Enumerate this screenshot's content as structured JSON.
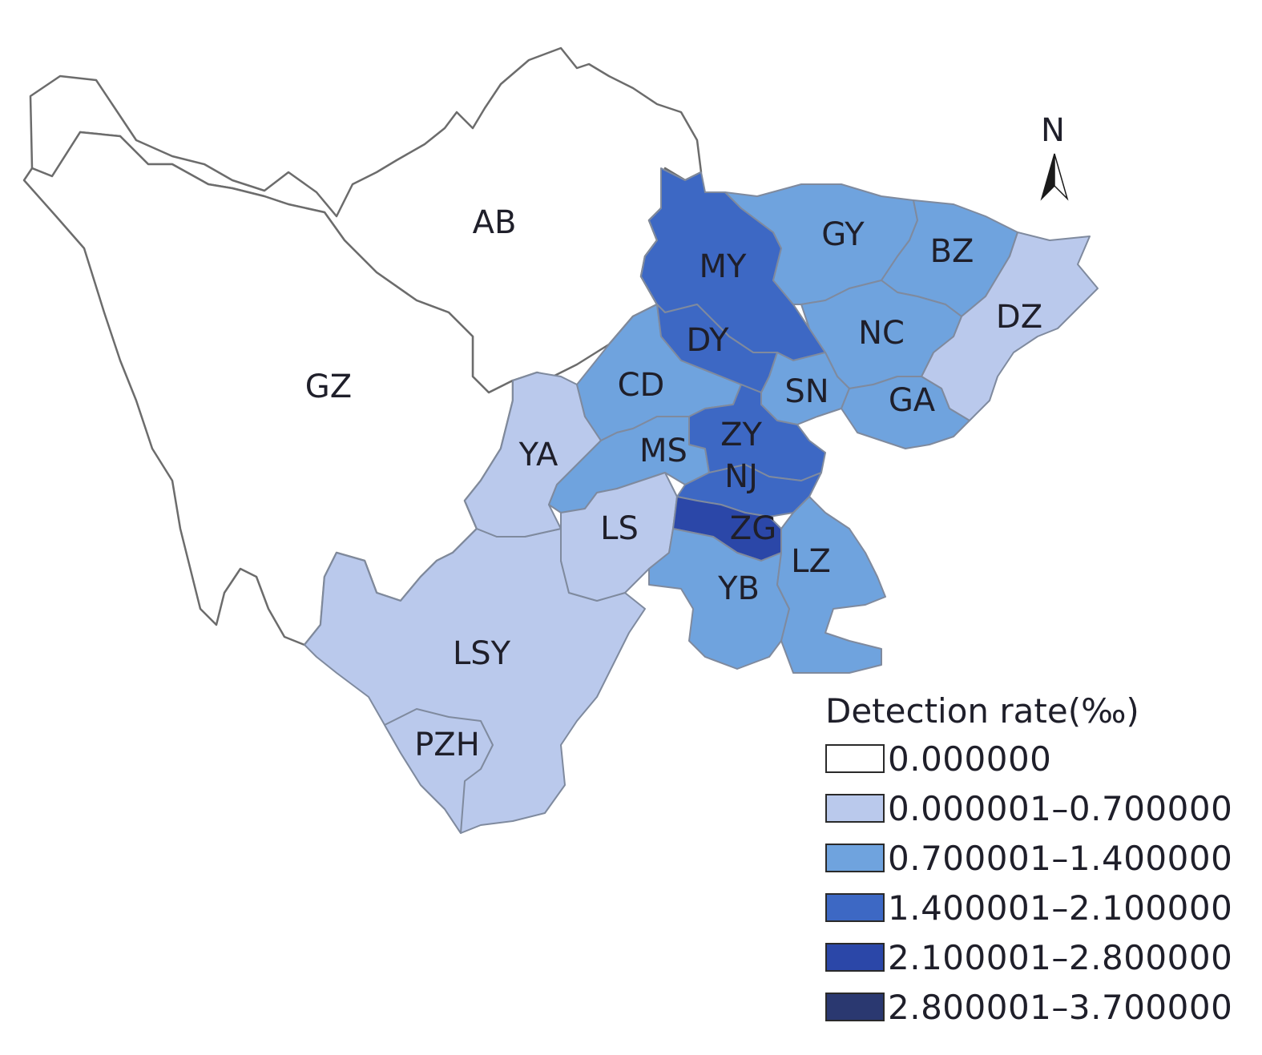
{
  "map": {
    "regions": [
      {
        "id": "AB",
        "label": "AB",
        "color": "#ffffff"
      },
      {
        "id": "GZ",
        "label": "GZ",
        "color": "#ffffff"
      },
      {
        "id": "MY",
        "label": "MY",
        "color": "#3d68c4"
      },
      {
        "id": "DY",
        "label": "DY",
        "color": "#3d68c4"
      },
      {
        "id": "GY",
        "label": "GY",
        "color": "#6fa3de"
      },
      {
        "id": "BZ",
        "label": "BZ",
        "color": "#6fa3de"
      },
      {
        "id": "DZ",
        "label": "DZ",
        "color": "#bac9ec"
      },
      {
        "id": "NC",
        "label": "NC",
        "color": "#6fa3de"
      },
      {
        "id": "CD",
        "label": "CD",
        "color": "#6fa3de"
      },
      {
        "id": "SN",
        "label": "SN",
        "color": "#6fa3de"
      },
      {
        "id": "GA",
        "label": "GA",
        "color": "#6fa3de"
      },
      {
        "id": "ZY",
        "label": "ZY",
        "color": "#3d68c4"
      },
      {
        "id": "NJ",
        "label": "NJ",
        "color": "#3d68c4"
      },
      {
        "id": "MS",
        "label": "MS",
        "color": "#6fa3de"
      },
      {
        "id": "YA",
        "label": "YA",
        "color": "#bac9ec"
      },
      {
        "id": "LS",
        "label": "LS",
        "color": "#bac9ec"
      },
      {
        "id": "ZG",
        "label": "ZG",
        "color": "#2b47a8"
      },
      {
        "id": "LZ",
        "label": "LZ",
        "color": "#6fa3de"
      },
      {
        "id": "YB",
        "label": "YB",
        "color": "#6fa3de"
      },
      {
        "id": "LSY",
        "label": "LSY",
        "color": "#bac9ec"
      },
      {
        "id": "PZH",
        "label": "PZH",
        "color": "#bac9ec"
      }
    ]
  },
  "north_arrow": {
    "letter": "N"
  },
  "legend": {
    "title": "Detection rate(‰)",
    "items": [
      {
        "label": "0.000000",
        "color": "#ffffff"
      },
      {
        "label": "0.000001–0.700000",
        "color": "#bac9ec"
      },
      {
        "label": "0.700001–1.400000",
        "color": "#6fa3de"
      },
      {
        "label": "1.400001–2.100000",
        "color": "#3d68c4"
      },
      {
        "label": "2.100001–2.800000",
        "color": "#2b47a8"
      },
      {
        "label": "2.800001–3.700000",
        "color": "#2a3870"
      }
    ]
  }
}
